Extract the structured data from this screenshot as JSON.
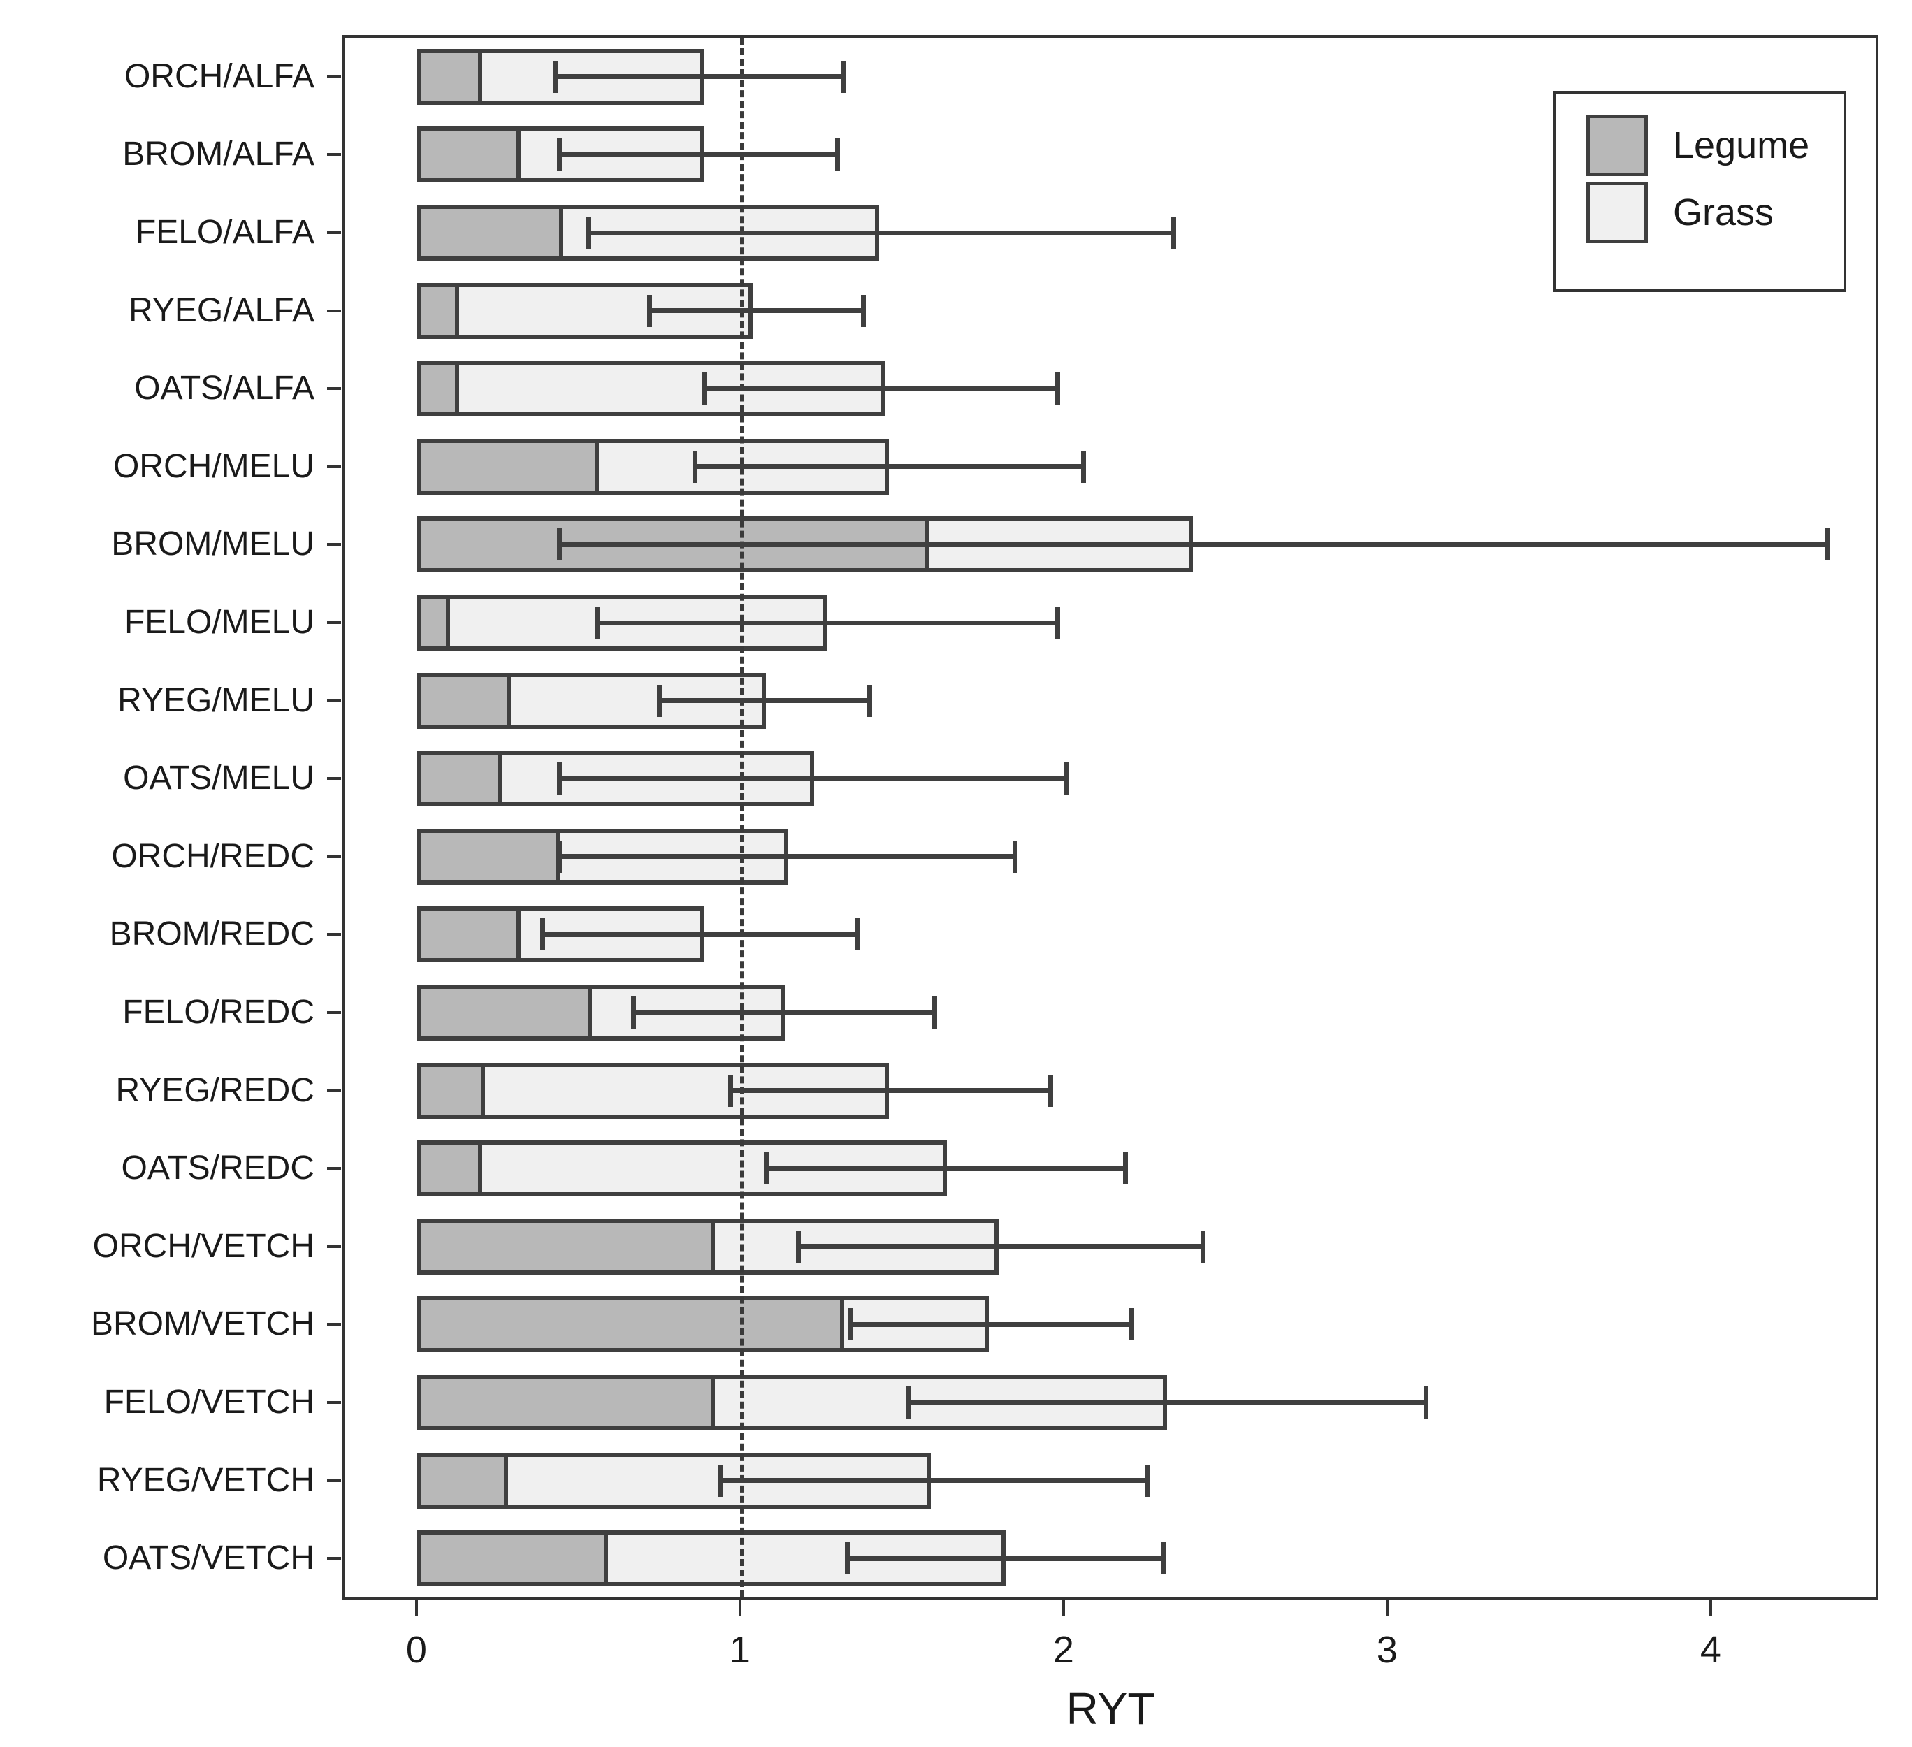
{
  "figure": {
    "xlabel": "RYT",
    "background": "#ffffff"
  },
  "chart_data": {
    "type": "bar",
    "orientation": "horizontal",
    "stacked": true,
    "title": "",
    "xlabel": "RYT",
    "ylabel": "",
    "grid": false,
    "xlim": [
      -0.22,
      4.51
    ],
    "x_tick_values": [
      0,
      1,
      2,
      3,
      4
    ],
    "x_tick_labels": [
      "0",
      "1",
      "2",
      "3",
      "4"
    ],
    "reference_line_x": 1,
    "legend_position": "top-right",
    "legend_items": [
      {
        "label": "Legume",
        "color": "#b8b8b8"
      },
      {
        "label": "Grass",
        "color": "#f0f0f0"
      }
    ],
    "categories": [
      "ORCH/ALFA",
      "BROM/ALFA",
      "FELO/ALFA",
      "RYEG/ALFA",
      "OATS/ALFA",
      "ORCH/MELU",
      "BROM/MELU",
      "FELO/MELU",
      "RYEG/MELU",
      "OATS/MELU",
      "ORCH/REDC",
      "BROM/REDC",
      "FELO/REDC",
      "RYEG/REDC",
      "OATS/REDC",
      "ORCH/VETCH",
      "BROM/VETCH",
      "FELO/VETCH",
      "RYEG/VETCH",
      "OATS/VETCH"
    ],
    "series": [
      {
        "name": "Legume",
        "values": [
          0.19,
          0.31,
          0.44,
          0.12,
          0.12,
          0.55,
          1.57,
          0.09,
          0.28,
          0.25,
          0.43,
          0.31,
          0.53,
          0.2,
          0.19,
          0.91,
          1.31,
          0.91,
          0.27,
          0.58
        ]
      },
      {
        "name": "Grass",
        "values": [
          0.7,
          0.58,
          0.99,
          0.92,
          1.33,
          0.91,
          0.83,
          1.18,
          0.8,
          0.98,
          0.72,
          0.58,
          0.61,
          1.26,
          1.45,
          0.89,
          0.46,
          1.41,
          1.32,
          1.24
        ]
      }
    ],
    "totals": [
      0.89,
      0.89,
      1.43,
      1.04,
      1.45,
      1.46,
      2.4,
      1.27,
      1.08,
      1.23,
      1.15,
      0.89,
      1.14,
      1.46,
      1.64,
      1.8,
      1.77,
      2.32,
      1.59,
      1.82
    ],
    "error_low": [
      0.43,
      0.44,
      0.53,
      0.72,
      0.89,
      0.86,
      0.44,
      0.56,
      0.75,
      0.44,
      0.44,
      0.39,
      0.67,
      0.97,
      1.08,
      1.18,
      1.34,
      1.52,
      0.94,
      1.33
    ],
    "error_high": [
      1.32,
      1.3,
      2.34,
      1.38,
      1.98,
      2.06,
      4.36,
      1.98,
      1.4,
      2.01,
      1.85,
      1.36,
      1.6,
      1.96,
      2.19,
      2.43,
      2.21,
      3.12,
      2.26,
      2.31
    ]
  },
  "colors": {
    "legume_fill": "#b8b8b8",
    "grass_fill": "#f0f0f0",
    "bar_border": "#3f3f3f",
    "panel_border": "#333333",
    "error_bar": "#3f3f3f",
    "reference_line": "#3a3a3a",
    "text": "#1a1a1a"
  }
}
